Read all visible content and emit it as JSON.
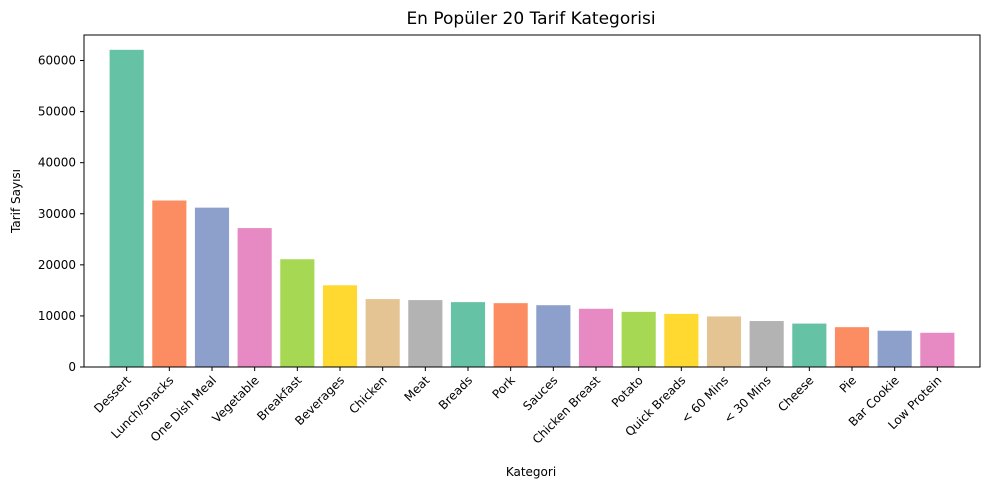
{
  "chart_data": {
    "type": "bar",
    "title": "En Popüler 20 Tarif Kategorisi",
    "xlabel": "Kategori",
    "ylabel": "Tarif Sayısı",
    "ylim": [
      0,
      65000
    ],
    "yticks": [
      0,
      10000,
      20000,
      30000,
      40000,
      50000,
      60000
    ],
    "grid": false,
    "categories": [
      "Dessert",
      "Lunch/Snacks",
      "One Dish Meal",
      "Vegetable",
      "Breakfast",
      "Beverages",
      "Chicken",
      "Meat",
      "Breads",
      "Pork",
      "Sauces",
      "Chicken Breast",
      "Potato",
      "Quick Breads",
      "< 60 Mins",
      "< 30 Mins",
      "Cheese",
      "Pie",
      "Bar Cookie",
      "Low Protein"
    ],
    "values": [
      62100,
      32600,
      31200,
      27200,
      21100,
      16000,
      13300,
      13100,
      12700,
      12500,
      12100,
      11400,
      10800,
      10400,
      9900,
      9000,
      8500,
      7800,
      7100,
      6700
    ],
    "colors": [
      "#66c2a5",
      "#fc8d62",
      "#8da0cb",
      "#e78ac3",
      "#a6d854",
      "#ffd92f",
      "#e5c494",
      "#b3b3b3"
    ]
  }
}
